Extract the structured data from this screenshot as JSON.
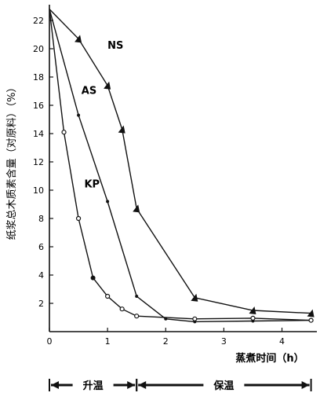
{
  "chart_data": {
    "type": "line",
    "ylabel": "纸浆总木质素含量（对原料）（%）",
    "xlabel": "蒸煮时间（h）",
    "xlim": [
      0,
      4.6
    ],
    "ylim": [
      0,
      23
    ],
    "xticks": [
      0,
      1,
      2,
      3,
      4
    ],
    "yticks": [
      2,
      4,
      6,
      8,
      10,
      12,
      14,
      16,
      18,
      20,
      22
    ],
    "grid": false,
    "series": [
      {
        "name": "NS",
        "marker": "triangle",
        "points": [
          [
            0,
            22.8
          ],
          [
            0.5,
            20.7
          ],
          [
            1.0,
            17.4
          ],
          [
            1.25,
            14.3
          ],
          [
            1.5,
            8.7
          ],
          [
            2.5,
            2.4
          ],
          [
            3.5,
            1.5
          ],
          [
            4.5,
            1.3
          ]
        ]
      },
      {
        "name": "AS",
        "marker": "dot",
        "points": [
          [
            0,
            22.8
          ],
          [
            0.5,
            15.3
          ],
          [
            1.0,
            9.2
          ],
          [
            1.5,
            2.5
          ],
          [
            2.0,
            0.9
          ],
          [
            2.5,
            0.7
          ],
          [
            3.5,
            0.75
          ],
          [
            4.5,
            0.8
          ]
        ]
      },
      {
        "name": "KP",
        "marker": "circle",
        "points": [
          [
            0,
            22.8
          ],
          [
            0.25,
            14.1
          ],
          [
            0.5,
            8.0
          ],
          [
            0.75,
            3.8
          ],
          [
            1.0,
            2.5
          ],
          [
            1.25,
            1.6
          ],
          [
            1.5,
            1.1
          ],
          [
            2.5,
            0.9
          ],
          [
            3.5,
            0.95
          ],
          [
            4.5,
            0.8
          ]
        ]
      }
    ],
    "phases": [
      {
        "label": "升温",
        "from": 0,
        "to": 1.5
      },
      {
        "label": "保温",
        "from": 1.5,
        "to": 4.5
      }
    ],
    "series_label_positions": {
      "NS": [
        1.0,
        20.0
      ],
      "AS": [
        0.55,
        16.8
      ],
      "KP": [
        0.6,
        10.2
      ]
    }
  }
}
